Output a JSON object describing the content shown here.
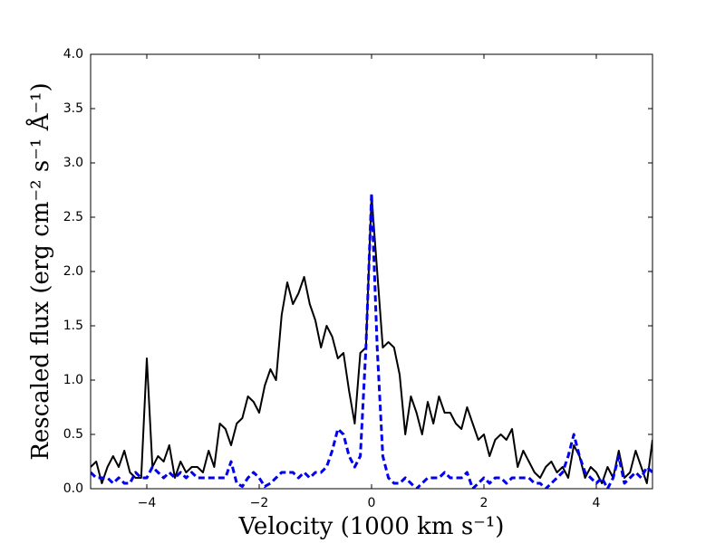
{
  "chart_data": {
    "type": "line",
    "xlabel": "Velocity (1000 km s⁻¹)",
    "ylabel": "Rescaled flux (erg cm⁻² s⁻¹ Å⁻¹)",
    "xlim": [
      -5,
      5
    ],
    "ylim": [
      0,
      4
    ],
    "xticks": [
      {
        "value": -4,
        "label": "−4"
      },
      {
        "value": -2,
        "label": "−2"
      },
      0,
      2,
      4
    ],
    "yticks": [
      {
        "value": 0,
        "label": "0.0"
      },
      0.5,
      {
        "value": 1,
        "label": "1.0"
      },
      1.5,
      {
        "value": 2,
        "label": "2.0"
      },
      2.5,
      {
        "value": 3,
        "label": "3.0"
      },
      3.5,
      {
        "value": 4,
        "label": "4.0"
      }
    ],
    "grid": false,
    "x": [
      -5.0,
      -4.9,
      -4.8,
      -4.7,
      -4.6,
      -4.5,
      -4.4,
      -4.3,
      -4.2,
      -4.1,
      -4.0,
      -3.9,
      -3.8,
      -3.7,
      -3.6,
      -3.5,
      -3.4,
      -3.3,
      -3.2,
      -3.1,
      -3.0,
      -2.9,
      -2.8,
      -2.7,
      -2.6,
      -2.5,
      -2.4,
      -2.3,
      -2.2,
      -2.1,
      -2.0,
      -1.9,
      -1.8,
      -1.7,
      -1.6,
      -1.5,
      -1.4,
      -1.3,
      -1.2,
      -1.1,
      -1.0,
      -0.9,
      -0.8,
      -0.7,
      -0.6,
      -0.5,
      -0.4,
      -0.3,
      -0.2,
      -0.1,
      0.0,
      0.1,
      0.2,
      0.3,
      0.4,
      0.5,
      0.6,
      0.7,
      0.8,
      0.9,
      1.0,
      1.1,
      1.2,
      1.3,
      1.4,
      1.5,
      1.6,
      1.7,
      1.8,
      1.9,
      2.0,
      2.1,
      2.2,
      2.3,
      2.4,
      2.5,
      2.6,
      2.7,
      2.8,
      2.9,
      3.0,
      3.1,
      3.2,
      3.3,
      3.4,
      3.5,
      3.6,
      3.7,
      3.8,
      3.9,
      4.0,
      4.1,
      4.2,
      4.3,
      4.4,
      4.5,
      4.6,
      4.7,
      4.8,
      4.9,
      5.0
    ],
    "series": [
      {
        "color": "#000000",
        "dashed": false,
        "values": [
          0.2,
          0.25,
          0.05,
          0.2,
          0.3,
          0.2,
          0.35,
          0.15,
          0.1,
          0.1,
          1.2,
          0.2,
          0.3,
          0.25,
          0.4,
          0.1,
          0.25,
          0.15,
          0.2,
          0.2,
          0.15,
          0.35,
          0.2,
          0.6,
          0.55,
          0.4,
          0.6,
          0.65,
          0.85,
          0.8,
          0.7,
          0.95,
          1.1,
          1.0,
          1.6,
          1.9,
          1.7,
          1.8,
          1.95,
          1.7,
          1.55,
          1.3,
          1.5,
          1.4,
          1.2,
          1.25,
          0.9,
          0.6,
          1.25,
          1.3,
          2.7,
          2.0,
          1.3,
          1.35,
          1.3,
          1.05,
          0.5,
          0.85,
          0.7,
          0.5,
          0.8,
          0.6,
          0.85,
          0.7,
          0.7,
          0.6,
          0.55,
          0.75,
          0.6,
          0.45,
          0.5,
          0.3,
          0.45,
          0.5,
          0.45,
          0.55,
          0.2,
          0.35,
          0.25,
          0.15,
          0.1,
          0.2,
          0.25,
          0.15,
          0.2,
          0.1,
          0.4,
          0.3,
          0.1,
          0.2,
          0.15,
          0.05,
          0.2,
          0.1,
          0.35,
          0.1,
          0.15,
          0.35,
          0.2,
          0.05,
          0.45
        ]
      },
      {
        "color": "#0000ee",
        "dashed": true,
        "values": [
          0.15,
          0.1,
          0.1,
          0.1,
          0.05,
          0.1,
          0.05,
          0.05,
          0.15,
          0.1,
          0.1,
          0.2,
          0.15,
          0.1,
          0.15,
          0.1,
          0.15,
          0.1,
          0.15,
          0.1,
          0.1,
          0.1,
          0.1,
          0.1,
          0.1,
          0.25,
          0.05,
          0.02,
          0.1,
          0.15,
          0.1,
          0.02,
          0.05,
          0.1,
          0.15,
          0.15,
          0.15,
          0.1,
          0.15,
          0.1,
          0.15,
          0.15,
          0.2,
          0.35,
          0.55,
          0.5,
          0.3,
          0.2,
          0.3,
          1.3,
          2.72,
          1.3,
          0.3,
          0.1,
          0.05,
          0.05,
          0.1,
          0.05,
          0.0,
          0.05,
          0.1,
          0.1,
          0.1,
          0.15,
          0.1,
          0.1,
          0.1,
          0.15,
          0.0,
          0.05,
          0.1,
          0.05,
          0.1,
          0.1,
          0.05,
          0.1,
          0.1,
          0.1,
          0.1,
          0.05,
          0.05,
          0.0,
          0.05,
          0.1,
          0.15,
          0.3,
          0.5,
          0.3,
          0.15,
          0.1,
          0.05,
          0.1,
          0.0,
          0.1,
          0.3,
          0.05,
          0.1,
          0.15,
          0.1,
          0.2,
          0.15
        ]
      }
    ]
  }
}
